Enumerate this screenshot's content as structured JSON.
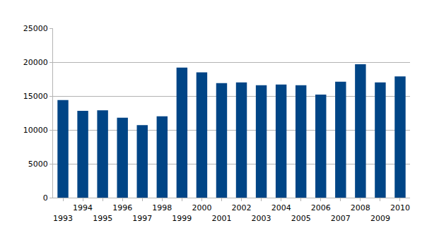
{
  "chart_data": {
    "type": "bar",
    "categories": [
      "1993",
      "1994",
      "1995",
      "1996",
      "1997",
      "1998",
      "1999",
      "2000",
      "2001",
      "2002",
      "2003",
      "2004",
      "2005",
      "2006",
      "2007",
      "2008",
      "2009",
      "2010"
    ],
    "values": [
      14400,
      12800,
      12900,
      11800,
      10700,
      12000,
      19200,
      18500,
      16900,
      17000,
      16600,
      16700,
      16600,
      15200,
      17100,
      19700,
      17000,
      17900
    ],
    "color": "#004586",
    "ylim": [
      0,
      25000
    ],
    "yticks": [
      0,
      5000,
      10000,
      15000,
      20000,
      25000
    ],
    "grid": true
  }
}
